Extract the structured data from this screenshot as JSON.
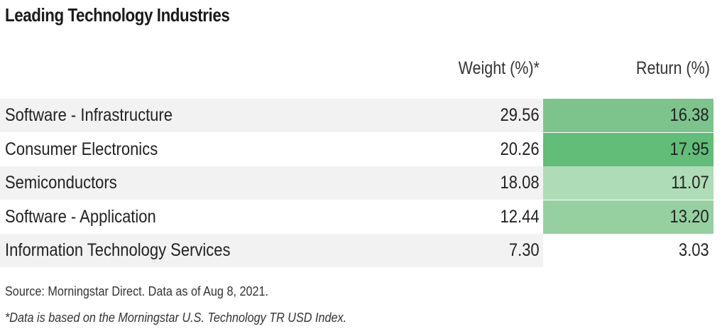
{
  "chart_data": {
    "type": "table",
    "title": "Leading Technology Industries",
    "columns": [
      "Weight (%)*",
      "Return (%)"
    ],
    "rows": [
      {
        "industry": "Software - Infrastructure",
        "weight": "29.56",
        "return": "16.38",
        "return_color": "#7cc48c"
      },
      {
        "industry": "Consumer Electronics",
        "weight": "20.26",
        "return": "17.95",
        "return_color": "#62bd78"
      },
      {
        "industry": "Semiconductors",
        "weight": "18.08",
        "return": "11.07",
        "return_color": "#aedcb6"
      },
      {
        "industry": "Software - Application",
        "weight": "12.44",
        "return": "13.20",
        "return_color": "#96d0a1"
      },
      {
        "industry": "Information Technology Services",
        "weight": "7.30",
        "return": "3.03",
        "return_color": "#ffffff"
      }
    ],
    "source": "Source: Morningstar Direct. Data as of Aug 8, 2021.",
    "note": "*Data is based on the Morningstar U.S. Technology TR USD Index."
  },
  "colors": {
    "stripe": "#f2f2f2",
    "plain": "#ffffff"
  }
}
